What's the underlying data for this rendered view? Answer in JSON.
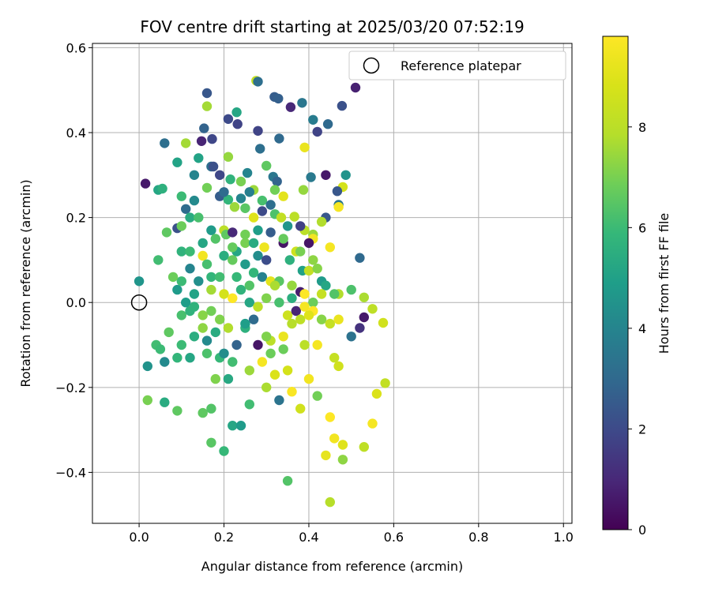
{
  "chart_data": {
    "type": "scatter",
    "title": "FOV centre drift starting at 2025/03/20 07:52:19",
    "xlabel": "Angular distance from reference (arcmin)",
    "ylabel": "Rotation from reference (arcmin)",
    "xlim": [
      -0.11,
      1.02
    ],
    "ylim": [
      -0.52,
      0.61
    ],
    "xticks": [
      0.0,
      0.2,
      0.4,
      0.6,
      0.8,
      1.0
    ],
    "xtick_labels": [
      "0.0",
      "0.2",
      "0.4",
      "0.6",
      "0.8",
      "1.0"
    ],
    "yticks": [
      0.6,
      0.4,
      0.2,
      0.0,
      -0.2,
      -0.4
    ],
    "ytick_labels": [
      "0.6",
      "0.4",
      "0.2",
      "0.0",
      "−0.2",
      "−0.4"
    ],
    "grid": true,
    "legend": {
      "position": "top-right",
      "entries": [
        {
          "label": "Reference platepar",
          "marker": "open-circle"
        }
      ]
    },
    "reference_point": {
      "x": 0.0,
      "y": 0.0
    },
    "colorbar": {
      "label": "Hours from first FF file",
      "range": [
        0,
        9.8
      ],
      "ticks": [
        0,
        2,
        4,
        6,
        8
      ],
      "tick_labels": [
        "0",
        "2",
        "4",
        "6",
        "8"
      ],
      "colormap": "viridis"
    },
    "points": [
      [
        0.015,
        0.28,
        0.6
      ],
      [
        0.0,
        0.05,
        4.6
      ],
      [
        0.06,
        0.375,
        3.2
      ],
      [
        0.16,
        0.493,
        2.4
      ],
      [
        0.16,
        0.462,
        7.6
      ],
      [
        0.153,
        0.41,
        2.8
      ],
      [
        0.147,
        0.38,
        0.9
      ],
      [
        0.172,
        0.385,
        1.9
      ],
      [
        0.21,
        0.432,
        2.0
      ],
      [
        0.232,
        0.42,
        1.8
      ],
      [
        0.23,
        0.448,
        5.2
      ],
      [
        0.276,
        0.522,
        8.3
      ],
      [
        0.28,
        0.52,
        3.2
      ],
      [
        0.319,
        0.484,
        2.6
      ],
      [
        0.328,
        0.48,
        2.7
      ],
      [
        0.357,
        0.46,
        1.0
      ],
      [
        0.384,
        0.47,
        3.5
      ],
      [
        0.41,
        0.43,
        3.7
      ],
      [
        0.445,
        0.42,
        3.0
      ],
      [
        0.478,
        0.463,
        2.2
      ],
      [
        0.51,
        0.506,
        0.8
      ],
      [
        0.42,
        0.402,
        1.8
      ],
      [
        0.39,
        0.365,
        9.3
      ],
      [
        0.33,
        0.386,
        3.0
      ],
      [
        0.28,
        0.404,
        1.8
      ],
      [
        0.285,
        0.362,
        3.2
      ],
      [
        0.3,
        0.322,
        6.6
      ],
      [
        0.11,
        0.375,
        7.6
      ],
      [
        0.14,
        0.34,
        5.1
      ],
      [
        0.17,
        0.32,
        3.2
      ],
      [
        0.09,
        0.33,
        5.1
      ],
      [
        0.21,
        0.343,
        7.4
      ],
      [
        0.175,
        0.32,
        2.2
      ],
      [
        0.215,
        0.29,
        5.7
      ],
      [
        0.24,
        0.285,
        7.0
      ],
      [
        0.255,
        0.305,
        4.0
      ],
      [
        0.27,
        0.265,
        7.5
      ],
      [
        0.316,
        0.296,
        3.5
      ],
      [
        0.325,
        0.285,
        2.8
      ],
      [
        0.32,
        0.265,
        6.9
      ],
      [
        0.34,
        0.25,
        9.1
      ],
      [
        0.387,
        0.265,
        7.4
      ],
      [
        0.405,
        0.295,
        3.6
      ],
      [
        0.44,
        0.3,
        0.6
      ],
      [
        0.487,
        0.3,
        4.5
      ],
      [
        0.48,
        0.272,
        8.7
      ],
      [
        0.467,
        0.262,
        2.4
      ],
      [
        0.47,
        0.23,
        3.5
      ],
      [
        0.47,
        0.225,
        9.6
      ],
      [
        0.44,
        0.2,
        2.4
      ],
      [
        0.045,
        0.265,
        5.2
      ],
      [
        0.055,
        0.268,
        5.6
      ],
      [
        0.1,
        0.25,
        6.0
      ],
      [
        0.13,
        0.24,
        4.2
      ],
      [
        0.16,
        0.27,
        6.9
      ],
      [
        0.19,
        0.25,
        2.6
      ],
      [
        0.21,
        0.242,
        5.8
      ],
      [
        0.225,
        0.225,
        7.5
      ],
      [
        0.25,
        0.222,
        6.5
      ],
      [
        0.29,
        0.215,
        2.0
      ],
      [
        0.32,
        0.208,
        6.3
      ],
      [
        0.335,
        0.2,
        8.2
      ],
      [
        0.366,
        0.202,
        8.0
      ],
      [
        0.39,
        0.17,
        8.0
      ],
      [
        0.41,
        0.16,
        7.5
      ],
      [
        0.41,
        0.15,
        9.5
      ],
      [
        0.4,
        0.14,
        0.5
      ],
      [
        0.37,
        0.12,
        8.5
      ],
      [
        0.38,
        0.12,
        7.0
      ],
      [
        0.41,
        0.1,
        7.3
      ],
      [
        0.045,
        0.1,
        6.1
      ],
      [
        0.065,
        0.165,
        6.6
      ],
      [
        0.09,
        0.175,
        2.2
      ],
      [
        0.1,
        0.18,
        6.8
      ],
      [
        0.11,
        0.22,
        3.1
      ],
      [
        0.12,
        0.2,
        5.4
      ],
      [
        0.14,
        0.2,
        6.2
      ],
      [
        0.17,
        0.17,
        4.8
      ],
      [
        0.2,
        0.17,
        8.0
      ],
      [
        0.205,
        0.16,
        6.6
      ],
      [
        0.22,
        0.165,
        1.0
      ],
      [
        0.23,
        0.12,
        5.2
      ],
      [
        0.25,
        0.14,
        7.0
      ],
      [
        0.27,
        0.14,
        5.4
      ],
      [
        0.295,
        0.13,
        9.4
      ],
      [
        0.31,
        0.165,
        2.6
      ],
      [
        0.34,
        0.14,
        0.5
      ],
      [
        0.355,
        0.1,
        5.6
      ],
      [
        0.385,
        0.075,
        5.0
      ],
      [
        0.4,
        0.075,
        8.2
      ],
      [
        0.42,
        0.08,
        7.2
      ],
      [
        0.43,
        0.05,
        4.8
      ],
      [
        0.44,
        0.04,
        5.2
      ],
      [
        0.45,
        0.13,
        9.6
      ],
      [
        0.52,
        0.105,
        3.0
      ],
      [
        0.1,
        0.12,
        5.7
      ],
      [
        0.12,
        0.12,
        6.0
      ],
      [
        0.15,
        0.11,
        9.5
      ],
      [
        0.16,
        0.09,
        6.2
      ],
      [
        0.2,
        0.11,
        5.5
      ],
      [
        0.22,
        0.1,
        6.7
      ],
      [
        0.25,
        0.09,
        4.8
      ],
      [
        0.27,
        0.07,
        5.8
      ],
      [
        0.29,
        0.06,
        3.9
      ],
      [
        0.31,
        0.05,
        9.1
      ],
      [
        0.33,
        0.05,
        6.5
      ],
      [
        0.36,
        0.04,
        7.4
      ],
      [
        0.38,
        0.025,
        0.7
      ],
      [
        0.39,
        0.02,
        9.8
      ],
      [
        0.41,
        0.0,
        6.8
      ],
      [
        0.47,
        0.02,
        7.8
      ],
      [
        0.5,
        0.03,
        6.3
      ],
      [
        0.53,
        0.012,
        7.7
      ],
      [
        0.55,
        -0.015,
        8.1
      ],
      [
        0.575,
        -0.048,
        8.6
      ],
      [
        0.09,
        0.03,
        4.8
      ],
      [
        0.1,
        0.05,
        6.0
      ],
      [
        0.12,
        0.08,
        4.0
      ],
      [
        0.14,
        0.05,
        4.4
      ],
      [
        0.17,
        0.06,
        5.8
      ],
      [
        0.2,
        0.02,
        8.7
      ],
      [
        0.22,
        0.01,
        9.8
      ],
      [
        0.24,
        0.03,
        5.7
      ],
      [
        0.26,
        0.0,
        5.2
      ],
      [
        0.28,
        -0.01,
        8.1
      ],
      [
        0.3,
        0.01,
        7.1
      ],
      [
        0.33,
        0.0,
        6.2
      ],
      [
        0.35,
        -0.03,
        8.5
      ],
      [
        0.37,
        -0.02,
        0.9
      ],
      [
        0.39,
        -0.01,
        9.6
      ],
      [
        0.41,
        -0.02,
        9.8
      ],
      [
        0.43,
        -0.04,
        7.2
      ],
      [
        0.45,
        -0.05,
        8.3
      ],
      [
        0.47,
        -0.04,
        9.3
      ],
      [
        0.5,
        -0.08,
        3.3
      ],
      [
        0.04,
        -0.1,
        6.1
      ],
      [
        0.05,
        -0.11,
        6.0
      ],
      [
        0.07,
        -0.07,
        6.6
      ],
      [
        0.1,
        -0.03,
        6.2
      ],
      [
        0.12,
        -0.02,
        5.7
      ],
      [
        0.15,
        -0.06,
        7.3
      ],
      [
        0.17,
        -0.02,
        6.9
      ],
      [
        0.19,
        -0.04,
        7.1
      ],
      [
        0.21,
        -0.06,
        7.8
      ],
      [
        0.23,
        -0.1,
        2.8
      ],
      [
        0.25,
        -0.06,
        5.6
      ],
      [
        0.27,
        -0.04,
        3.1
      ],
      [
        0.28,
        -0.1,
        0.5
      ],
      [
        0.31,
        -0.09,
        8.0
      ],
      [
        0.34,
        -0.11,
        6.8
      ],
      [
        0.36,
        -0.05,
        7.9
      ],
      [
        0.39,
        -0.1,
        8.0
      ],
      [
        0.42,
        -0.1,
        9.6
      ],
      [
        0.46,
        -0.13,
        8.3
      ],
      [
        0.47,
        -0.15,
        8.6
      ],
      [
        0.02,
        -0.15,
        4.5
      ],
      [
        0.06,
        -0.14,
        4.2
      ],
      [
        0.09,
        -0.13,
        5.8
      ],
      [
        0.12,
        -0.13,
        5.2
      ],
      [
        0.16,
        -0.12,
        6.3
      ],
      [
        0.19,
        -0.13,
        5.9
      ],
      [
        0.22,
        -0.14,
        6.1
      ],
      [
        0.26,
        -0.16,
        7.5
      ],
      [
        0.29,
        -0.14,
        9.6
      ],
      [
        0.32,
        -0.17,
        8.9
      ],
      [
        0.35,
        -0.16,
        8.7
      ],
      [
        0.4,
        -0.18,
        9.5
      ],
      [
        0.02,
        -0.23,
        7.0
      ],
      [
        0.06,
        -0.235,
        5.4
      ],
      [
        0.09,
        -0.255,
        6.6
      ],
      [
        0.15,
        -0.26,
        6.6
      ],
      [
        0.17,
        -0.25,
        6.4
      ],
      [
        0.22,
        -0.29,
        5.2
      ],
      [
        0.24,
        -0.29,
        4.8
      ],
      [
        0.26,
        -0.24,
        6.1
      ],
      [
        0.3,
        -0.2,
        7.7
      ],
      [
        0.33,
        -0.23,
        3.4
      ],
      [
        0.36,
        -0.21,
        9.7
      ],
      [
        0.38,
        -0.25,
        8.6
      ],
      [
        0.42,
        -0.22,
        6.9
      ],
      [
        0.45,
        -0.27,
        9.8
      ],
      [
        0.46,
        -0.32,
        9.5
      ],
      [
        0.48,
        -0.37,
        7.3
      ],
      [
        0.53,
        -0.34,
        8.1
      ],
      [
        0.58,
        -0.19,
        8.2
      ],
      [
        0.17,
        -0.33,
        6.5
      ],
      [
        0.2,
        -0.35,
        5.9
      ],
      [
        0.35,
        -0.42,
        6.4
      ],
      [
        0.45,
        -0.47,
        7.9
      ],
      [
        0.55,
        -0.285,
        9.6
      ],
      [
        0.56,
        -0.215,
        8.9
      ],
      [
        0.52,
        -0.06,
        1.3
      ],
      [
        0.53,
        -0.035,
        0.6
      ],
      [
        0.44,
        -0.36,
        9.2
      ],
      [
        0.48,
        -0.335,
        9.0
      ],
      [
        0.13,
        0.3,
        4.0
      ],
      [
        0.19,
        0.3,
        1.9
      ],
      [
        0.2,
        0.26,
        3.1
      ],
      [
        0.24,
        0.245,
        4.0
      ],
      [
        0.26,
        0.26,
        3.8
      ],
      [
        0.29,
        0.24,
        6.2
      ],
      [
        0.31,
        0.23,
        3.2
      ],
      [
        0.35,
        0.18,
        4.6
      ],
      [
        0.38,
        0.18,
        1.7
      ],
      [
        0.43,
        0.19,
        7.8
      ],
      [
        0.08,
        0.06,
        6.8
      ],
      [
        0.11,
        0.0,
        4.9
      ],
      [
        0.13,
        -0.01,
        5.7
      ],
      [
        0.15,
        -0.03,
        7.2
      ],
      [
        0.18,
        -0.07,
        5.4
      ],
      [
        0.2,
        -0.12,
        4.3
      ],
      [
        0.25,
        -0.05,
        4.9
      ],
      [
        0.3,
        -0.08,
        7.1
      ],
      [
        0.31,
        -0.12,
        6.8
      ],
      [
        0.34,
        -0.08,
        9.3
      ],
      [
        0.36,
        0.01,
        5.5
      ],
      [
        0.38,
        -0.04,
        8.1
      ],
      [
        0.4,
        -0.03,
        9.0
      ],
      [
        0.43,
        0.02,
        8.3
      ],
      [
        0.46,
        0.02,
        6.4
      ],
      [
        0.15,
        0.14,
        5.2
      ],
      [
        0.18,
        0.15,
        6.4
      ],
      [
        0.22,
        0.13,
        6.7
      ],
      [
        0.25,
        0.16,
        6.9
      ],
      [
        0.28,
        0.11,
        4.3
      ],
      [
        0.13,
        0.02,
        5.1
      ],
      [
        0.17,
        0.03,
        7.6
      ],
      [
        0.19,
        0.06,
        6.1
      ],
      [
        0.23,
        0.06,
        5.9
      ],
      [
        0.26,
        0.04,
        6.4
      ],
      [
        0.1,
        -0.1,
        6.0
      ],
      [
        0.13,
        -0.08,
        5.5
      ],
      [
        0.16,
        -0.09,
        4.2
      ],
      [
        0.18,
        -0.18,
        7.1
      ],
      [
        0.21,
        -0.18,
        5.3
      ],
      [
        0.32,
        0.04,
        7.7
      ],
      [
        0.3,
        0.1,
        2.1
      ],
      [
        0.28,
        0.17,
        4.9
      ],
      [
        0.27,
        0.2,
        9.0
      ],
      [
        0.34,
        0.15,
        6.7
      ]
    ]
  }
}
